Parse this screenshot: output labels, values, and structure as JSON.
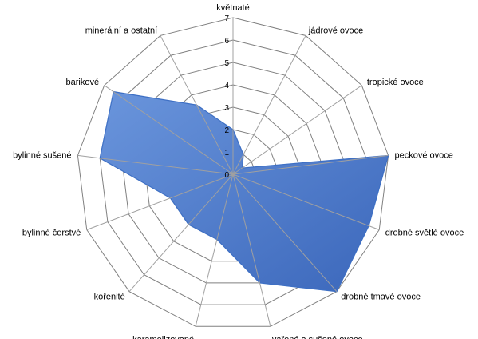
{
  "chart_data": {
    "type": "radar",
    "title": "",
    "categories": [
      "květnaté",
      "jádrové ovoce",
      "tropické ovoce",
      "peckové ovoce",
      "drobné světlé ovoce",
      "drobné tmavé ovoce",
      "vařené a sušené ovoce",
      "karamelizované",
      "kořenité",
      "bylinné čerstvé",
      "bylinné sušené",
      "barikové",
      "minerální a ostatní"
    ],
    "series": [
      {
        "name": "",
        "values": [
          2,
          1,
          0.5,
          7,
          6.5,
          7,
          5,
          3,
          3,
          3,
          6,
          6.5,
          3.5
        ],
        "color": "#4472c4"
      }
    ],
    "rlim": [
      0,
      7
    ],
    "ticks": [
      "0",
      "1",
      "2",
      "3",
      "4",
      "5",
      "6",
      "7"
    ],
    "grid": true,
    "legend": "none"
  }
}
